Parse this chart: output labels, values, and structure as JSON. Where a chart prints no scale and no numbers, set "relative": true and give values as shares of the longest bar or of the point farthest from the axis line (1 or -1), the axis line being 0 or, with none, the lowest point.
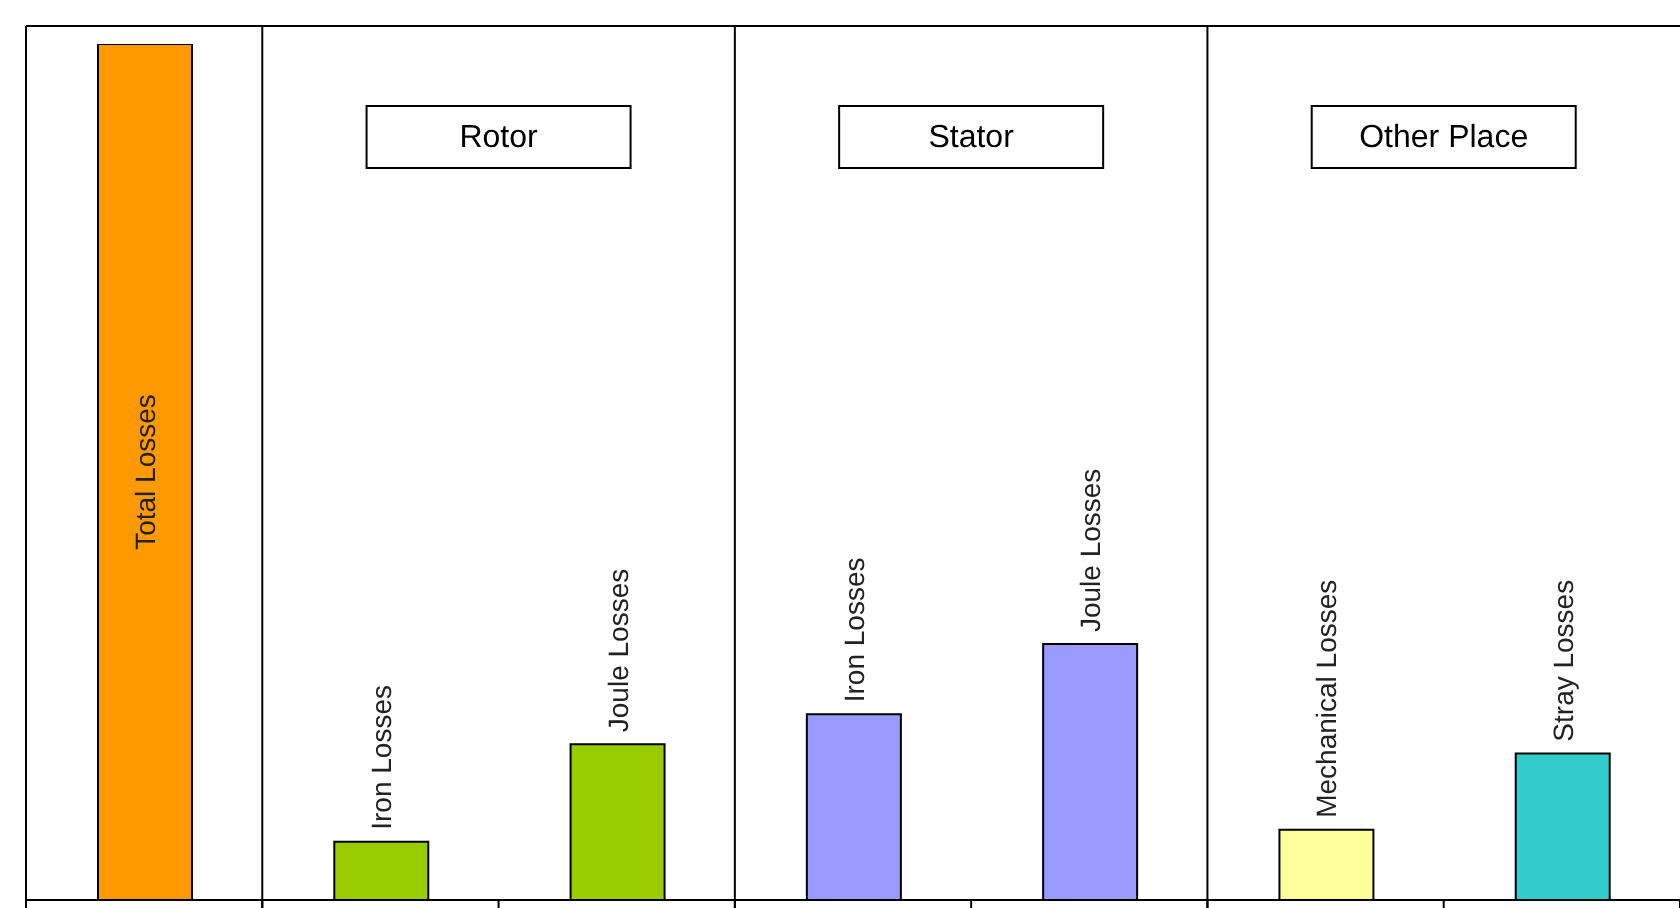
{
  "chart_data": {
    "type": "bar",
    "relative": true,
    "categories": [
      "Total Losses",
      "Iron Losses",
      "Joule Losses",
      "Iron Losses",
      "Joule Losses",
      "Mechanical Losses",
      "Stray Losses"
    ],
    "values": [
      1,
      0.068,
      0.182,
      0.217,
      0.299,
      0.082,
      0.171
    ],
    "colors": [
      "#ff9900",
      "#99cc00",
      "#99cc00",
      "#9999ff",
      "#9999ff",
      "#ffff99",
      "#33cccc"
    ],
    "annotations": [
      "Rotor",
      "Stator",
      "Other Place"
    ]
  }
}
